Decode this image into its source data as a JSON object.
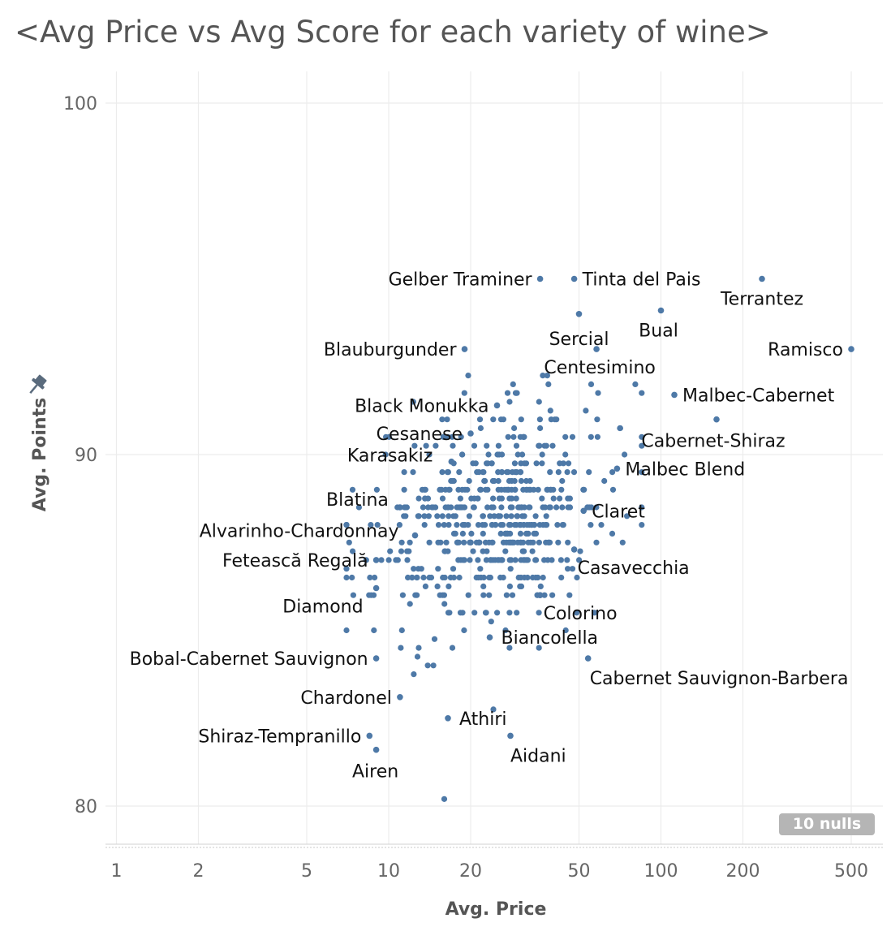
{
  "title": "<Avg Price vs Avg Score for each variety of wine>",
  "nulls_badge": "10 nulls",
  "chart_data": {
    "type": "scatter",
    "title": "<Avg Price vs Avg Score for each variety of wine>",
    "xlabel": "Avg. Price",
    "ylabel": "Avg. Points",
    "x_scale": "log",
    "xlim": [
      0.9,
      600
    ],
    "ylim": [
      79.6,
      100.5
    ],
    "x_ticks": [
      1,
      2,
      5,
      10,
      20,
      50,
      100,
      200,
      500
    ],
    "y_ticks": [
      80,
      90,
      100
    ],
    "grid": true,
    "dot_color": "#4e79a7",
    "labeled_points": [
      {
        "name": "Gelber Traminer",
        "x": 36,
        "y": 95.0
      },
      {
        "name": "Tinta del Pais",
        "x": 48,
        "y": 95.0
      },
      {
        "name": "Terrantez",
        "x": 235,
        "y": 95.0
      },
      {
        "name": "Bual",
        "x": 100,
        "y": 94.1
      },
      {
        "name": "Sercial",
        "x": 50,
        "y": 94.0
      },
      {
        "name": "Ramisco",
        "x": 500,
        "y": 93.0
      },
      {
        "name": "Blauburgunder",
        "x": 19,
        "y": 93.0
      },
      {
        "name": "Centesimino",
        "x": 58,
        "y": 93.0
      },
      {
        "name": "Malbec-Cabernet",
        "x": 112,
        "y": 91.7
      },
      {
        "name": "Black Monukka",
        "x": 25,
        "y": 91.4
      },
      {
        "name": "Cabernet-Shiraz",
        "x": 160,
        "y": 91.0
      },
      {
        "name": "Cesanese",
        "x": 20,
        "y": 90.6
      },
      {
        "name": "Malbec Blend",
        "x": 69,
        "y": 89.6
      },
      {
        "name": "Karasakiz",
        "x": 17,
        "y": 89.8
      },
      {
        "name": "Blatina",
        "x": 11,
        "y": 88.5
      },
      {
        "name": "Claret",
        "x": 52,
        "y": 88.4
      },
      {
        "name": "Alvarinho-Chardonnay",
        "x": 12.5,
        "y": 87.7
      },
      {
        "name": "Casavecchia",
        "x": 48,
        "y": 87.3
      },
      {
        "name": "Fetească Regală",
        "x": 9,
        "y": 87.0
      },
      {
        "name": "Diamond",
        "x": 9,
        "y": 86.2
      },
      {
        "name": "Colorino",
        "x": 36,
        "y": 86.0
      },
      {
        "name": "Biancolella",
        "x": 23.5,
        "y": 84.8
      },
      {
        "name": "Bobal-Cabernet Sauvignon",
        "x": 9,
        "y": 84.2
      },
      {
        "name": "Cabernet Sauvignon-Barbera",
        "x": 54,
        "y": 84.2
      },
      {
        "name": "Chardonel",
        "x": 11,
        "y": 83.1
      },
      {
        "name": "Athiri",
        "x": 16.5,
        "y": 82.5
      },
      {
        "name": "Shiraz-Tempranillo",
        "x": 8.5,
        "y": 82.0
      },
      {
        "name": "Aidani",
        "x": 28,
        "y": 82.0
      },
      {
        "name": "Airen",
        "x": 9,
        "y": 81.6
      }
    ],
    "cluster": {
      "x_geo_mean": 25,
      "x_log_spread": 0.22,
      "y_mean": 88.1,
      "y_spread": 1.5,
      "count": 560,
      "seed": 7
    }
  }
}
